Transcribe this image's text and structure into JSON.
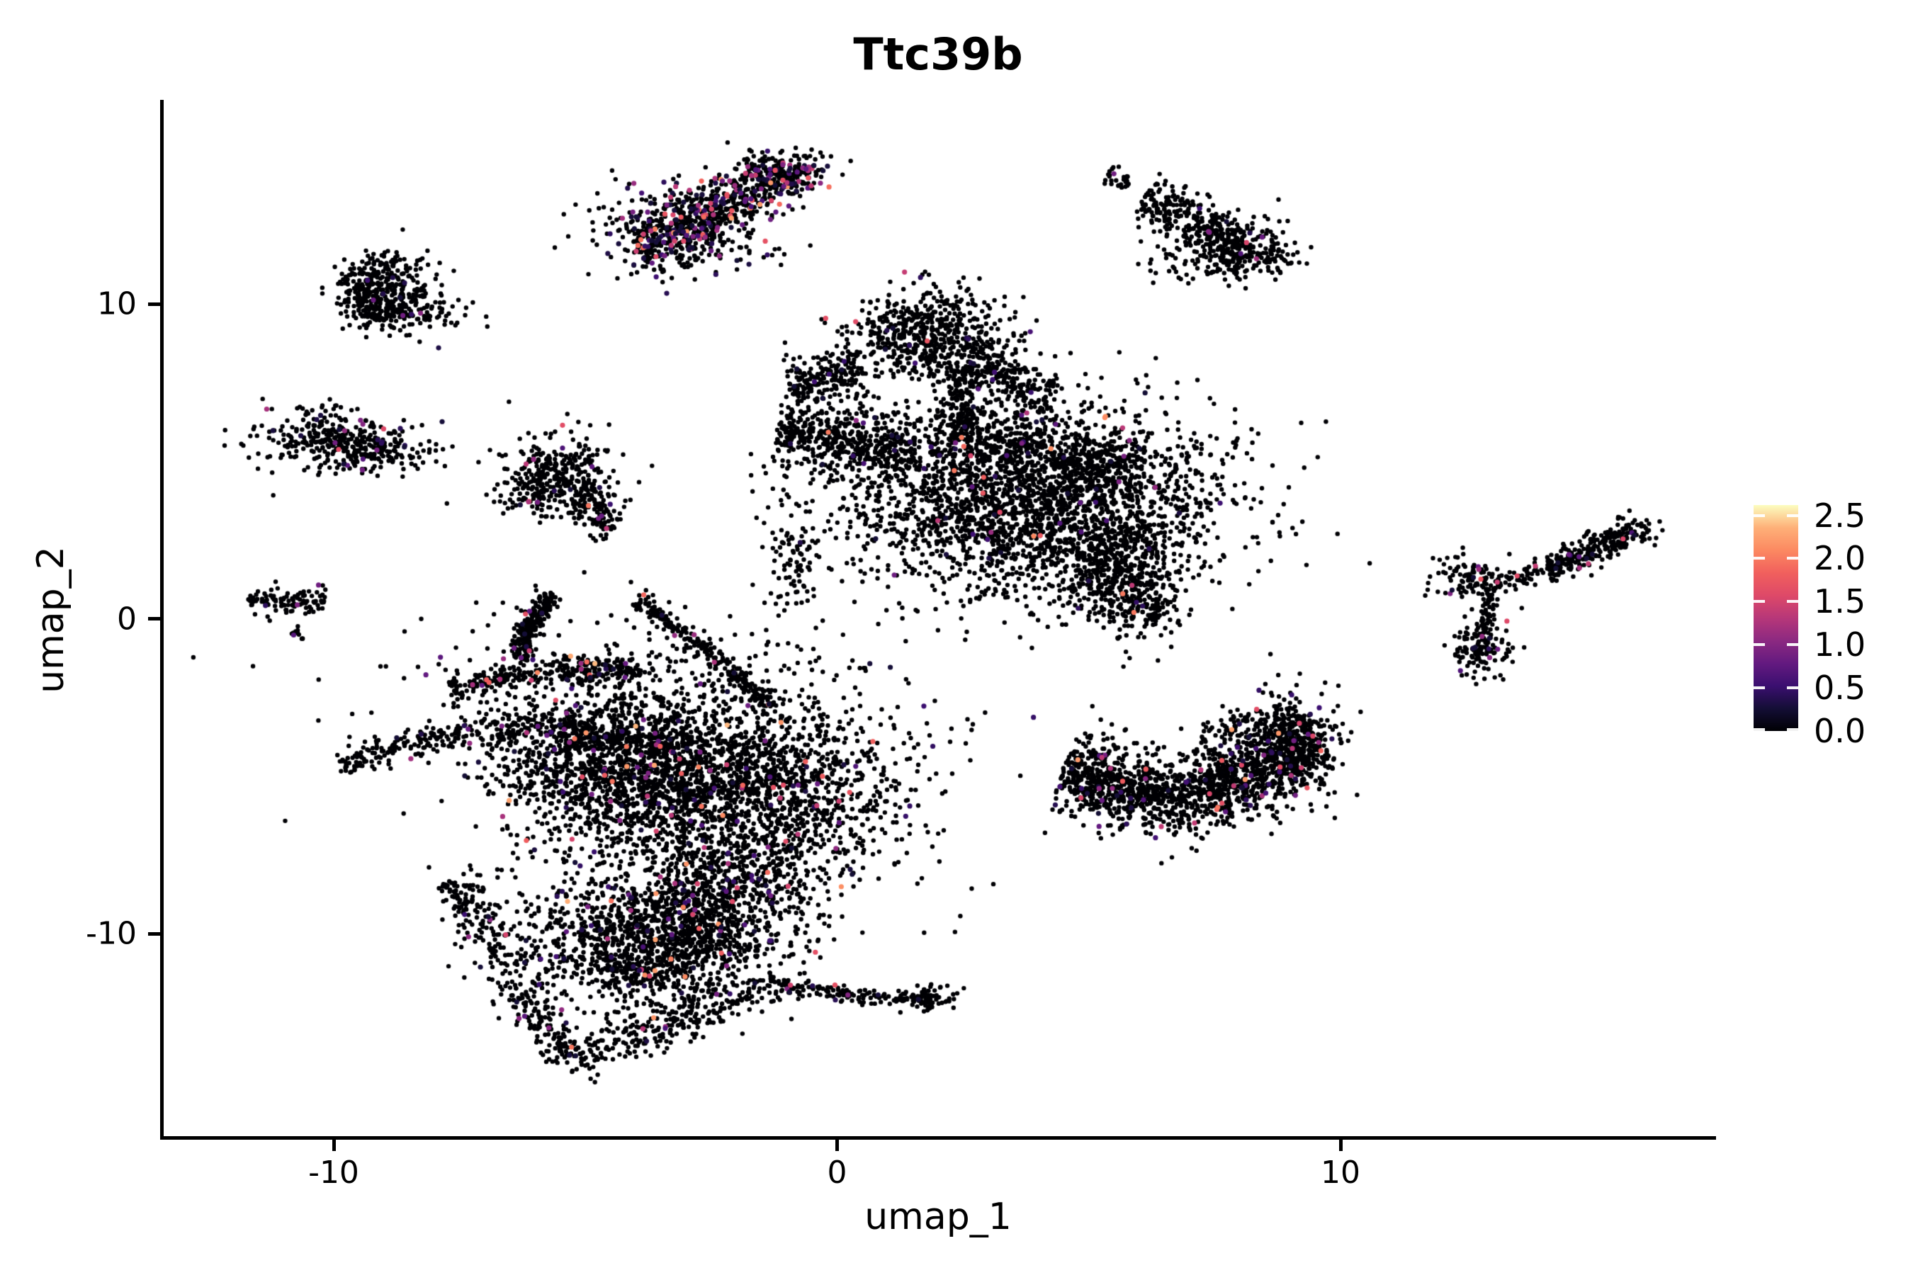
{
  "figure": {
    "title": "Ttc39b"
  },
  "chart_data": {
    "type": "scatter",
    "title": "Ttc39b",
    "xlabel": "umap_1",
    "ylabel": "umap_2",
    "x_ticks": [
      -10,
      0,
      10
    ],
    "y_ticks": [
      10,
      0,
      -10
    ],
    "x_range": [
      -13.4,
      17.4
    ],
    "y_range": [
      -16.4,
      16.5
    ],
    "grid": false,
    "legend_position": "right",
    "point_count_approx": 18000,
    "zero_expression_color": "#000004",
    "colorbar": {
      "ticks": [
        2.5,
        2.0,
        1.5,
        1.0,
        0.5,
        0.0
      ],
      "vmin": 0.0,
      "vmax": 2.62,
      "colormap": "magma",
      "stops": [
        "#000004",
        "#140e36",
        "#3b0f70",
        "#641a80",
        "#8c2981",
        "#b73779",
        "#de4968",
        "#f1605d",
        "#fc8961",
        "#feb078",
        "#fcfdbf"
      ]
    },
    "clusters": [
      {
        "name": "top-middle-band",
        "cf": 0.2,
        "vmax": 2.3,
        "parts": [
          {
            "type": "streak",
            "x1": -3.9,
            "y1": 11.6,
            "x2": -1.0,
            "y2": 14.2,
            "w": 0.38,
            "n": 500
          },
          {
            "type": "blob",
            "cx": -1.05,
            "cy": 14.1,
            "sx": 0.45,
            "sy": 0.35,
            "n": 200
          },
          {
            "type": "blob",
            "cx": -3.1,
            "cy": 12.4,
            "sx": 0.85,
            "sy": 0.75,
            "n": 330
          }
        ]
      },
      {
        "name": "top-right-arrow",
        "cf": 0.01,
        "vmax": 1.6,
        "parts": [
          {
            "type": "streak",
            "x1": 5.36,
            "y1": 14.2,
            "x2": 5.78,
            "y2": 13.78,
            "w": 0.12,
            "n": 28
          },
          {
            "type": "streak",
            "x1": 6.1,
            "y1": 13.4,
            "x2": 8.1,
            "y2": 11.8,
            "w": 0.3,
            "n": 300
          },
          {
            "type": "blob",
            "cx": 8.15,
            "cy": 11.7,
            "sx": 0.5,
            "sy": 0.5,
            "n": 200
          },
          {
            "type": "blob",
            "cx": 7.35,
            "cy": 11.3,
            "sx": 0.55,
            "sy": 0.35,
            "n": 70
          }
        ]
      },
      {
        "name": "upper-left-small",
        "cf": 0.035,
        "vmax": 1.4,
        "parts": [
          {
            "type": "blob",
            "cx": -9.0,
            "cy": 10.85,
            "sx": 0.5,
            "sy": 0.45,
            "n": 190
          },
          {
            "type": "blob",
            "cx": -9.25,
            "cy": 10.2,
            "sx": 0.35,
            "sy": 0.5,
            "n": 150
          },
          {
            "type": "blob",
            "cx": -8.55,
            "cy": 9.75,
            "sx": 0.55,
            "sy": 0.35,
            "n": 160
          }
        ]
      },
      {
        "name": "left-horizontal-small",
        "cf": 0.04,
        "vmax": 1.6,
        "parts": [
          {
            "type": "blob",
            "cx": -10.1,
            "cy": 5.75,
            "sx": 0.7,
            "sy": 0.5,
            "n": 260
          },
          {
            "type": "blob",
            "cx": -9.3,
            "cy": 5.3,
            "sx": 0.7,
            "sy": 0.35,
            "n": 170
          }
        ]
      },
      {
        "name": "far-left-tiny",
        "cf": 0.05,
        "vmax": 1.2,
        "parts": [
          {
            "type": "streak",
            "x1": -11.7,
            "y1": 0.55,
            "x2": -10.15,
            "y2": 0.62,
            "w": 0.16,
            "n": 100
          },
          {
            "type": "streak",
            "x1": -10.8,
            "y1": -0.38,
            "x2": -10.6,
            "y2": -0.62,
            "w": 0.08,
            "n": 12
          }
        ]
      },
      {
        "name": "mid-left-blob",
        "cf": 0.035,
        "vmax": 2.0,
        "parts": [
          {
            "type": "blob",
            "cx": -5.6,
            "cy": 4.7,
            "sx": 0.6,
            "sy": 0.6,
            "n": 300
          },
          {
            "type": "streak",
            "x1": -5.2,
            "y1": 4.0,
            "x2": -4.4,
            "y2": 2.9,
            "w": 0.3,
            "n": 130
          },
          {
            "type": "blob",
            "cx": -6.0,
            "cy": 3.9,
            "sx": 0.3,
            "sy": 0.4,
            "n": 60
          }
        ]
      },
      {
        "name": "central-large",
        "cf": 0.022,
        "vmax": 2.2,
        "parts": [
          {
            "type": "blob",
            "cx": 1.8,
            "cy": 9.0,
            "sx": 0.8,
            "sy": 0.7,
            "n": 600
          },
          {
            "type": "streak",
            "x1": 0.5,
            "y1": 8.0,
            "x2": -0.95,
            "y2": 7.4,
            "w": 0.3,
            "n": 200
          },
          {
            "type": "streak",
            "x1": 2.6,
            "y1": 8.3,
            "x2": 4.2,
            "y2": 7.0,
            "w": 0.3,
            "n": 220
          },
          {
            "type": "streak",
            "x1": 2.3,
            "y1": 7.9,
            "x2": 2.55,
            "y2": 5.8,
            "w": 0.25,
            "n": 160
          },
          {
            "type": "streak",
            "x1": -1.2,
            "y1": 6.1,
            "x2": 1.5,
            "y2": 5.3,
            "w": 0.42,
            "n": 500
          },
          {
            "type": "blob",
            "cx": -0.95,
            "cy": 1.9,
            "sx": 0.3,
            "sy": 1.0,
            "n": 90
          },
          {
            "type": "blob",
            "cx": 3.9,
            "cy": 3.6,
            "sx": 1.9,
            "sy": 1.5,
            "n": 2600
          },
          {
            "type": "streak",
            "x1": 1.9,
            "y1": 5.8,
            "x2": 6.1,
            "y2": 4.7,
            "w": 0.4,
            "n": 420
          },
          {
            "type": "blob",
            "cx": 5.6,
            "cy": 1.3,
            "sx": 0.6,
            "sy": 0.85,
            "n": 380
          },
          {
            "type": "blob",
            "cx": 6.2,
            "cy": 0.5,
            "sx": 0.3,
            "sy": 0.5,
            "n": 90
          }
        ]
      },
      {
        "name": "right-crescent",
        "cf": 0.055,
        "vmax": 2.3,
        "parts": [
          {
            "type": "path",
            "pts": [
              [
                4.5,
                -4.7
              ],
              [
                6.0,
                -5.7
              ],
              [
                7.8,
                -5.35
              ],
              [
                9.55,
                -3.85
              ]
            ],
            "w": 0.5,
            "n": 1600
          },
          {
            "type": "blob",
            "cx": 9.0,
            "cy": -3.9,
            "sx": 0.5,
            "sy": 0.8,
            "n": 280
          },
          {
            "type": "streak",
            "x1": 7.2,
            "y1": -3.7,
            "x2": 8.8,
            "y2": -3.1,
            "w": 0.25,
            "n": 90
          }
        ]
      },
      {
        "name": "far-right-y-shape",
        "cf": 0.05,
        "vmax": 2.3,
        "parts": [
          {
            "type": "blob",
            "cx": 12.7,
            "cy": 1.3,
            "sx": 0.4,
            "sy": 0.3,
            "n": 110
          },
          {
            "type": "streak",
            "x1": 12.95,
            "y1": 1.0,
            "x2": 12.8,
            "y2": -0.6,
            "w": 0.12,
            "n": 60
          },
          {
            "type": "blob",
            "cx": 12.8,
            "cy": -1.0,
            "sx": 0.3,
            "sy": 0.4,
            "n": 120
          },
          {
            "type": "streak",
            "x1": 13.1,
            "y1": 1.1,
            "x2": 13.95,
            "y2": 1.4,
            "w": 0.1,
            "n": 30
          }
        ]
      },
      {
        "name": "far-right-streak",
        "cf": 0.045,
        "vmax": 1.9,
        "parts": [
          {
            "type": "streak",
            "x1": 14.1,
            "y1": 1.6,
            "x2": 15.6,
            "y2": 2.6,
            "w": 0.18,
            "n": 200
          },
          {
            "type": "blob",
            "cx": 15.75,
            "cy": 2.75,
            "sx": 0.3,
            "sy": 0.25,
            "n": 70
          },
          {
            "type": "streak",
            "x1": 13.6,
            "y1": 1.5,
            "x2": 14.1,
            "y2": 1.65,
            "w": 0.08,
            "n": 12
          }
        ]
      },
      {
        "name": "bottom-left-complex",
        "cf": 0.045,
        "vmax": 2.4,
        "parts": [
          {
            "type": "path",
            "pts": [
              [
                -5.65,
                0.8
              ],
              [
                -6.15,
                -0.2
              ],
              [
                -6.3,
                -1.3
              ]
            ],
            "w": 0.15,
            "n": 230
          },
          {
            "type": "path",
            "pts": [
              [
                -4.0,
                0.6
              ],
              [
                -2.6,
                -1.0
              ],
              [
                -1.2,
                -2.9
              ]
            ],
            "w": 0.13,
            "n": 240
          },
          {
            "type": "path",
            "pts": [
              [
                -7.7,
                -2.2
              ],
              [
                -5.6,
                -1.6
              ],
              [
                -3.9,
                -1.55
              ]
            ],
            "w": 0.15,
            "n": 300
          },
          {
            "type": "path",
            "pts": [
              [
                -9.9,
                -4.6
              ],
              [
                -7.6,
                -3.6
              ],
              [
                -5.7,
                -3.5
              ],
              [
                -2.6,
                -4.1
              ]
            ],
            "w": 0.18,
            "n": 420
          },
          {
            "type": "blob",
            "cx": -1.9,
            "cy": -5.5,
            "sx": 1.7,
            "sy": 1.5,
            "n": 1700
          },
          {
            "type": "blob",
            "cx": -4.3,
            "cy": -4.7,
            "sx": 1.3,
            "sy": 1.2,
            "n": 1100
          },
          {
            "type": "blob",
            "cx": -4.0,
            "cy": -3.3,
            "sx": 2.5,
            "sy": 1.8,
            "n": 550
          },
          {
            "type": "blob",
            "cx": -3.5,
            "cy": -10.2,
            "sx": 1.25,
            "sy": 1.05,
            "n": 1500
          },
          {
            "type": "streak",
            "x1": -7.6,
            "y1": -8.2,
            "x2": -5.4,
            "y2": -14.0,
            "w": 0.3,
            "n": 320
          },
          {
            "type": "streak",
            "x1": -5.4,
            "y1": -14.0,
            "x2": -1.2,
            "y2": -11.6,
            "w": 0.3,
            "n": 280
          },
          {
            "type": "blob",
            "cx": -2.2,
            "cy": -8.3,
            "sx": 0.9,
            "sy": 0.8,
            "n": 420
          },
          {
            "type": "path",
            "pts": [
              [
                -1.2,
                -11.6
              ],
              [
                0.5,
                -12.0
              ],
              [
                1.9,
                -12.1
              ]
            ],
            "w": 0.1,
            "n": 150
          },
          {
            "type": "blob",
            "cx": 1.85,
            "cy": -12.05,
            "sx": 0.3,
            "sy": 0.2,
            "n": 60
          }
        ]
      }
    ]
  }
}
